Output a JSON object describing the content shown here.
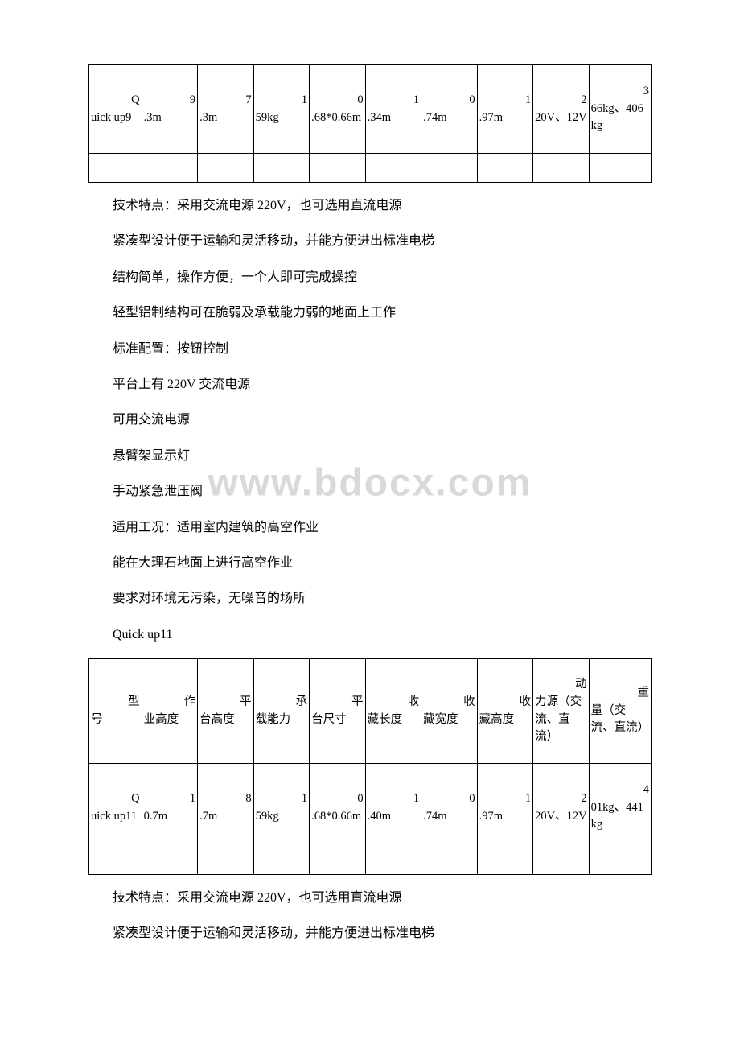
{
  "watermark": "www.bdocx.com",
  "table1": {
    "rows": [
      {
        "model_lead": "Q",
        "model_rest": "uick up9",
        "c1_lead": "9",
        "c1_rest": ".3m",
        "c2_lead": "7",
        "c2_rest": ".3m",
        "c3_lead": "1",
        "c3_rest": "59kg",
        "c4_lead": "0",
        "c4_rest": ".68*0.66m",
        "c5_lead": "1",
        "c5_rest": ".34m",
        "c6_lead": "0",
        "c6_rest": ".74m",
        "c7_lead": "1",
        "c7_rest": ".97m",
        "c8_lead": "2",
        "c8_rest": "20V、12V",
        "c9_lead": "3",
        "c9_rest": "66kg、406kg"
      }
    ]
  },
  "section1": {
    "p1": "技术特点：采用交流电源 220V，也可选用直流电源",
    "p2": "紧凑型设计便于运输和灵活移动，并能方便进出标准电梯",
    "p3": "结构简单，操作方便，一个人即可完成操控",
    "p4": "轻型铝制结构可在脆弱及承载能力弱的地面上工作",
    "p5": "标准配置：按钮控制",
    "p6": "平台上有 220V 交流电源",
    "p7": "可用交流电源",
    "p8": "悬臂架显示灯",
    "p9": "手动紧急泄压阀",
    "p10": "适用工况：适用室内建筑的高空作业",
    "p11": "能在大理石地面上进行高空作业",
    "p12": "要求对环境无污染，无噪音的场所",
    "p13": "Quick up11"
  },
  "table2": {
    "headers": {
      "h0_lead": "型",
      "h0_rest": "号",
      "h1_lead": "作",
      "h1_rest": "业高度",
      "h2_lead": "平",
      "h2_rest": "台高度",
      "h3_lead": "承",
      "h3_rest": "载能力",
      "h4_lead": "平",
      "h4_rest": "台尺寸",
      "h5_lead": "收",
      "h5_rest": "藏长度",
      "h6_lead": "收",
      "h6_rest": "藏宽度",
      "h7_lead": "收",
      "h7_rest": "藏高度",
      "h8_lead": "动",
      "h8_rest": "力源（交流、直流）",
      "h9_lead": "重",
      "h9_rest": "量（交流、直流）"
    },
    "rows": [
      {
        "model_lead": "Q",
        "model_rest": "uick up11",
        "c1_lead": "1",
        "c1_rest": "0.7m",
        "c2_lead": "8",
        "c2_rest": ".7m",
        "c3_lead": "1",
        "c3_rest": "59kg",
        "c4_lead": "0",
        "c4_rest": ".68*0.66m",
        "c5_lead": "1",
        "c5_rest": ".40m",
        "c6_lead": "0",
        "c6_rest": ".74m",
        "c7_lead": "1",
        "c7_rest": ".97m",
        "c8_lead": "2",
        "c8_rest": "20V、12V",
        "c9_lead": "4",
        "c9_rest": "01kg、441kg"
      }
    ]
  },
  "section2": {
    "p1": "技术特点：采用交流电源 220V，也可选用直流电源",
    "p2": "紧凑型设计便于运输和灵活移动，并能方便进出标准电梯"
  }
}
